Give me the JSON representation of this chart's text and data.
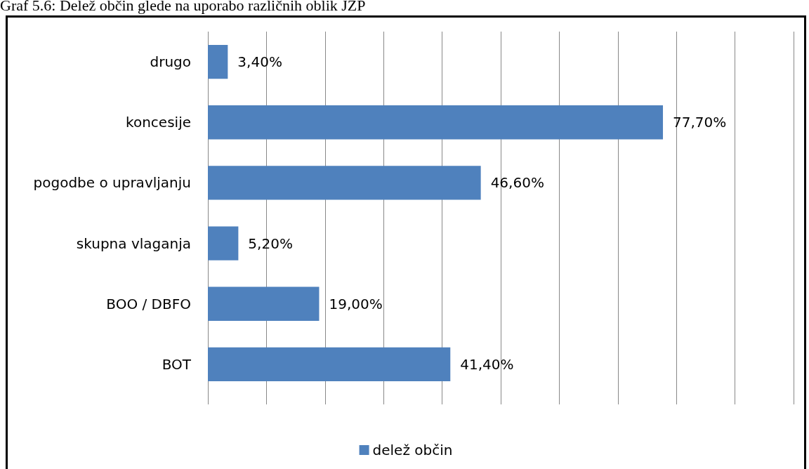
{
  "chart_data": {
    "type": "bar",
    "orientation": "horizontal",
    "title": "Graf 5.6: Delež občin glede na uporabo različnih oblik JZP",
    "categories": [
      "drugo",
      "koncesije",
      "pogodbe o upravljanju",
      "skupna vlaganja",
      "BOO / DBFO",
      "BOT"
    ],
    "series": [
      {
        "name": "delež občin",
        "color": "#4f81bd",
        "values": [
          3.4,
          77.7,
          46.6,
          5.2,
          19.0,
          41.4
        ],
        "value_labels": [
          "3,40%",
          "77,70%",
          "46,60%",
          "5,20%",
          "19,00%",
          "41,40%"
        ]
      }
    ],
    "xlim": [
      0,
      100
    ],
    "xticks": [
      {
        "value": 0,
        "label": null
      },
      {
        "value": 10,
        "label": null
      },
      {
        "value": 20,
        "label": null
      },
      {
        "value": 30,
        "label": null
      },
      {
        "value": 40,
        "label": null
      },
      {
        "value": 50,
        "label": null
      },
      {
        "value": 60,
        "label": null
      },
      {
        "value": 70,
        "label": null
      },
      {
        "value": 80,
        "label": null
      },
      {
        "value": 90,
        "label": null
      },
      {
        "value": 100,
        "label": null
      }
    ],
    "tick_labels": "y",
    "grid": "x",
    "legend": "bottom"
  }
}
